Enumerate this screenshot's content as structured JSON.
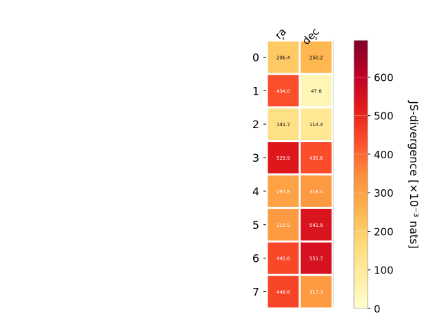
{
  "chart_data": {
    "type": "heatmap",
    "title": "",
    "columns": [
      "ra",
      "dec"
    ],
    "rows": [
      "0",
      "1",
      "2",
      "3",
      "4",
      "5",
      "6",
      "7"
    ],
    "values": [
      [
        206.4,
        250.2
      ],
      [
        434.0,
        47.6
      ],
      [
        141.7,
        114.4
      ],
      [
        529.9,
        435.8
      ],
      [
        297.8,
        318.4
      ],
      [
        315.9,
        541.9
      ],
      [
        445.6,
        551.7
      ],
      [
        448.6,
        317.3
      ]
    ],
    "value_labels": [
      [
        "206.4",
        "250.2"
      ],
      [
        "434.0",
        "47.6"
      ],
      [
        "141.7",
        "114.4"
      ],
      [
        "529.9",
        "435.8"
      ],
      [
        "297.8",
        "318.4"
      ],
      [
        "315.9",
        "541.9"
      ],
      [
        "445.6",
        "551.7"
      ],
      [
        "448.6",
        "317.3"
      ]
    ],
    "colorbar": {
      "label": "JS-divergence [×10⁻³ nats]",
      "range": [
        0,
        695
      ],
      "ticks": [
        0,
        100,
        200,
        300,
        400,
        500,
        600
      ],
      "tick_labels": [
        "0",
        "100",
        "200",
        "300",
        "400",
        "500",
        "600"
      ],
      "colormap": "YlOrRd",
      "stops": [
        "#ffffcc",
        "#ffeda0",
        "#fed976",
        "#feb24c",
        "#fd8d3c",
        "#fc4e2a",
        "#e31a1c",
        "#bd0026",
        "#800026"
      ]
    },
    "colors": {
      "light_text": "#ffffff",
      "dark_text": "#000000",
      "grid": "#ffffff"
    }
  }
}
